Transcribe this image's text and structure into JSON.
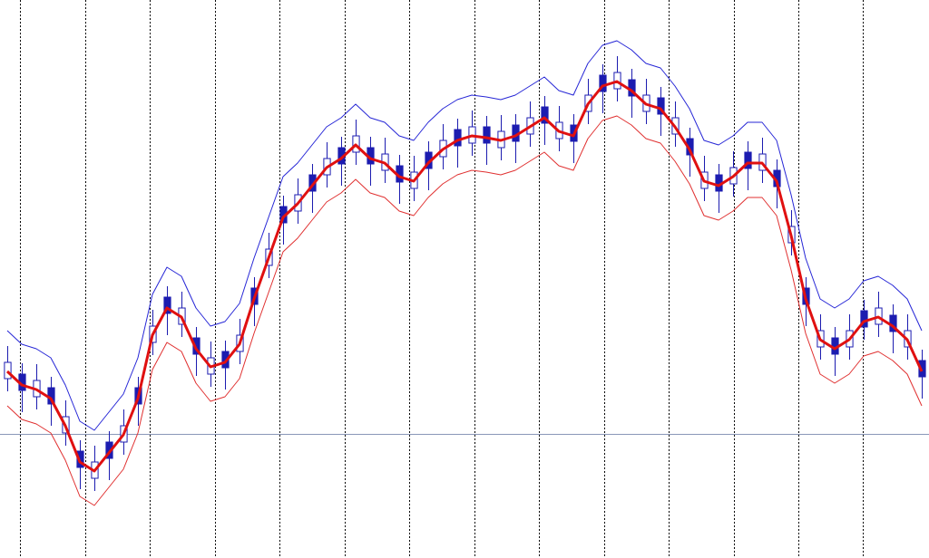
{
  "chart_data": {
    "type": "candlestick",
    "xlim": [
      -0.5,
      63.5
    ],
    "ylim": [
      0,
      616
    ],
    "xticks": [
      0.875,
      5.375,
      9.8125,
      14.3125,
      18.75,
      23.25,
      27.6875,
      32.1875,
      36.625,
      41.125,
      45.5625,
      50.0625,
      54.5,
      58.9375
    ],
    "grid": true,
    "grid_color": "#000000",
    "hline": 137,
    "hline_color": "#8a97b8",
    "up_color": "#ffffff",
    "down_color": "#1c1cb0",
    "candle_color": "#1c1cb0",
    "open": [
      198,
      203,
      178,
      188,
      138,
      118,
      88,
      128,
      128,
      188,
      238,
      288,
      258,
      243,
      203,
      228,
      228,
      298,
      323,
      388,
      383,
      423,
      423,
      453,
      448,
      453,
      428,
      433,
      408,
      448,
      443,
      473,
      458,
      476,
      453,
      478,
      468,
      498,
      463,
      478,
      493,
      533,
      518,
      528,
      493,
      508,
      468,
      463,
      408,
      423,
      413,
      448,
      428,
      428,
      348,
      298,
      233,
      243,
      233,
      273,
      258,
      268,
      233,
      218
    ],
    "high": [
      234,
      215,
      214,
      200,
      174,
      130,
      124,
      140,
      164,
      200,
      274,
      300,
      294,
      255,
      239,
      240,
      264,
      310,
      359,
      400,
      419,
      435,
      459,
      465,
      484,
      465,
      464,
      445,
      444,
      460,
      479,
      485,
      494,
      488,
      489,
      490,
      504,
      510,
      499,
      490,
      529,
      545,
      554,
      540,
      529,
      520,
      504,
      475,
      444,
      435,
      449,
      460,
      464,
      440,
      384,
      310,
      269,
      255,
      269,
      285,
      294,
      280,
      269,
      230
    ],
    "low": [
      184,
      161,
      164,
      146,
      124,
      76,
      74,
      86,
      114,
      146,
      224,
      246,
      244,
      201,
      189,
      186,
      214,
      256,
      309,
      346,
      369,
      381,
      409,
      411,
      434,
      411,
      414,
      391,
      394,
      406,
      429,
      431,
      444,
      434,
      439,
      436,
      454,
      456,
      449,
      436,
      479,
      491,
      504,
      486,
      479,
      466,
      454,
      421,
      394,
      381,
      399,
      406,
      414,
      386,
      334,
      256,
      219,
      201,
      219,
      241,
      244,
      226,
      219,
      176
    ],
    "close": [
      216,
      185,
      196,
      170,
      156,
      100,
      106,
      110,
      146,
      170,
      256,
      270,
      276,
      225,
      221,
      210,
      246,
      280,
      341,
      370,
      401,
      405,
      441,
      435,
      466,
      435,
      446,
      415,
      426,
      430,
      461,
      455,
      476,
      458,
      471,
      460,
      486,
      480,
      481,
      460,
      511,
      515,
      536,
      510,
      511,
      490,
      486,
      445,
      426,
      405,
      431,
      430,
      446,
      410,
      366,
      280,
      251,
      225,
      251,
      255,
      276,
      250,
      251,
      200
    ],
    "series": [
      {
        "color": "#2626d6",
        "width": 1,
        "values": [
          251,
          236,
          231,
          221,
          191,
          151,
          141,
          161,
          181,
          221,
          291,
          321,
          311,
          276,
          256,
          261,
          281,
          331,
          376,
          421,
          436,
          456,
          476,
          486,
          501,
          486,
          481,
          466,
          461,
          481,
          496,
          506,
          511,
          509,
          506,
          511,
          521,
          531,
          516,
          511,
          546,
          566,
          571,
          561,
          546,
          541,
          521,
          496,
          461,
          456,
          466,
          481,
          481,
          461,
          401,
          331,
          286,
          276,
          286,
          306,
          311,
          301,
          286,
          251
        ]
      },
      {
        "color": "#e01010",
        "width": 3,
        "values": [
          206,
          191,
          186,
          176,
          146,
          106,
          96,
          116,
          136,
          176,
          246,
          276,
          266,
          231,
          211,
          216,
          236,
          286,
          331,
          376,
          391,
          411,
          431,
          441,
          456,
          441,
          436,
          421,
          416,
          436,
          451,
          461,
          466,
          464,
          461,
          466,
          476,
          486,
          471,
          466,
          501,
          521,
          526,
          516,
          501,
          496,
          476,
          451,
          416,
          411,
          421,
          436,
          436,
          416,
          356,
          286,
          241,
          231,
          241,
          261,
          266,
          256,
          241,
          206
        ]
      },
      {
        "color": "#e03030",
        "width": 1,
        "values": [
          168,
          153,
          148,
          138,
          108,
          68,
          58,
          78,
          98,
          138,
          208,
          238,
          228,
          193,
          173,
          178,
          198,
          248,
          293,
          338,
          353,
          373,
          393,
          403,
          418,
          403,
          398,
          383,
          378,
          398,
          413,
          423,
          428,
          426,
          423,
          428,
          438,
          448,
          433,
          428,
          463,
          483,
          488,
          478,
          463,
          458,
          438,
          413,
          378,
          373,
          383,
          398,
          398,
          378,
          318,
          248,
          203,
          193,
          203,
          223,
          228,
          218,
          203,
          168
        ]
      }
    ]
  }
}
